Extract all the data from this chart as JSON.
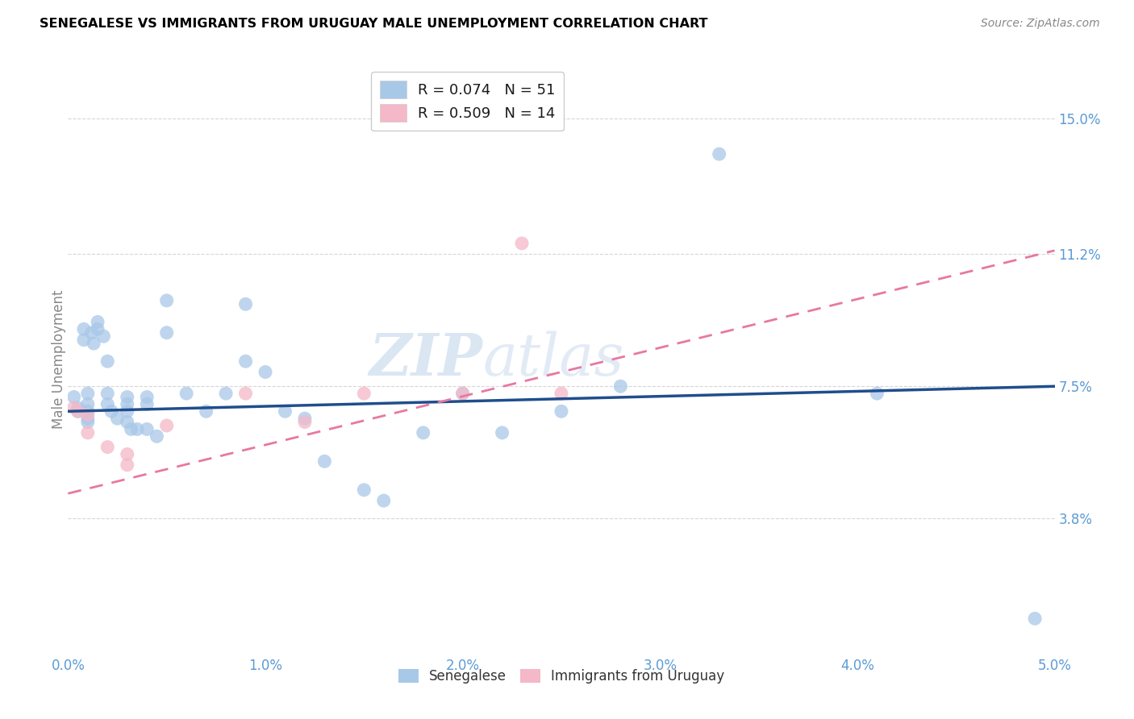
{
  "title": "SENEGALESE VS IMMIGRANTS FROM URUGUAY MALE UNEMPLOYMENT CORRELATION CHART",
  "source": "Source: ZipAtlas.com",
  "ylabel": "Male Unemployment",
  "xlim": [
    0.0,
    0.05
  ],
  "ylim": [
    0.0,
    0.165
  ],
  "xtick_labels": [
    "0.0%",
    "1.0%",
    "2.0%",
    "3.0%",
    "4.0%",
    "5.0%"
  ],
  "xtick_values": [
    0.0,
    0.01,
    0.02,
    0.03,
    0.04,
    0.05
  ],
  "ytick_labels": [
    "3.8%",
    "7.5%",
    "11.2%",
    "15.0%"
  ],
  "ytick_values": [
    0.038,
    0.075,
    0.112,
    0.15
  ],
  "legend_1_label": "R = 0.074   N = 51",
  "legend_2_label": "R = 0.509   N = 14",
  "color_blue": "#A8C8E8",
  "color_pink": "#F4B8C8",
  "line_blue": "#1F4E8C",
  "line_pink": "#E878A0",
  "watermark_1": "ZIP",
  "watermark_2": "atlas",
  "senegalese_x": [
    0.0003,
    0.0005,
    0.0005,
    0.0008,
    0.0008,
    0.001,
    0.001,
    0.001,
    0.001,
    0.001,
    0.0012,
    0.0013,
    0.0015,
    0.0015,
    0.0018,
    0.002,
    0.002,
    0.002,
    0.0022,
    0.0025,
    0.003,
    0.003,
    0.003,
    0.003,
    0.0032,
    0.0035,
    0.004,
    0.004,
    0.004,
    0.0045,
    0.005,
    0.005,
    0.006,
    0.007,
    0.008,
    0.009,
    0.009,
    0.01,
    0.011,
    0.012,
    0.013,
    0.015,
    0.016,
    0.018,
    0.02,
    0.022,
    0.025,
    0.028,
    0.033,
    0.041,
    0.049
  ],
  "senegalese_y": [
    0.072,
    0.069,
    0.068,
    0.091,
    0.088,
    0.073,
    0.07,
    0.068,
    0.066,
    0.065,
    0.09,
    0.087,
    0.093,
    0.091,
    0.089,
    0.082,
    0.073,
    0.07,
    0.068,
    0.066,
    0.072,
    0.07,
    0.068,
    0.065,
    0.063,
    0.063,
    0.072,
    0.07,
    0.063,
    0.061,
    0.099,
    0.09,
    0.073,
    0.068,
    0.073,
    0.098,
    0.082,
    0.079,
    0.068,
    0.066,
    0.054,
    0.046,
    0.043,
    0.062,
    0.073,
    0.062,
    0.068,
    0.075,
    0.14,
    0.073,
    0.01
  ],
  "uruguay_x": [
    0.0003,
    0.0005,
    0.001,
    0.001,
    0.002,
    0.003,
    0.003,
    0.005,
    0.009,
    0.012,
    0.015,
    0.02,
    0.023,
    0.025
  ],
  "uruguay_y": [
    0.069,
    0.068,
    0.067,
    0.062,
    0.058,
    0.056,
    0.053,
    0.064,
    0.073,
    0.065,
    0.073,
    0.073,
    0.115,
    0.073
  ],
  "blue_line_x": [
    0.0,
    0.05
  ],
  "blue_line_y": [
    0.068,
    0.075
  ],
  "pink_line_x": [
    0.0,
    0.05
  ],
  "pink_line_y": [
    0.045,
    0.113
  ]
}
